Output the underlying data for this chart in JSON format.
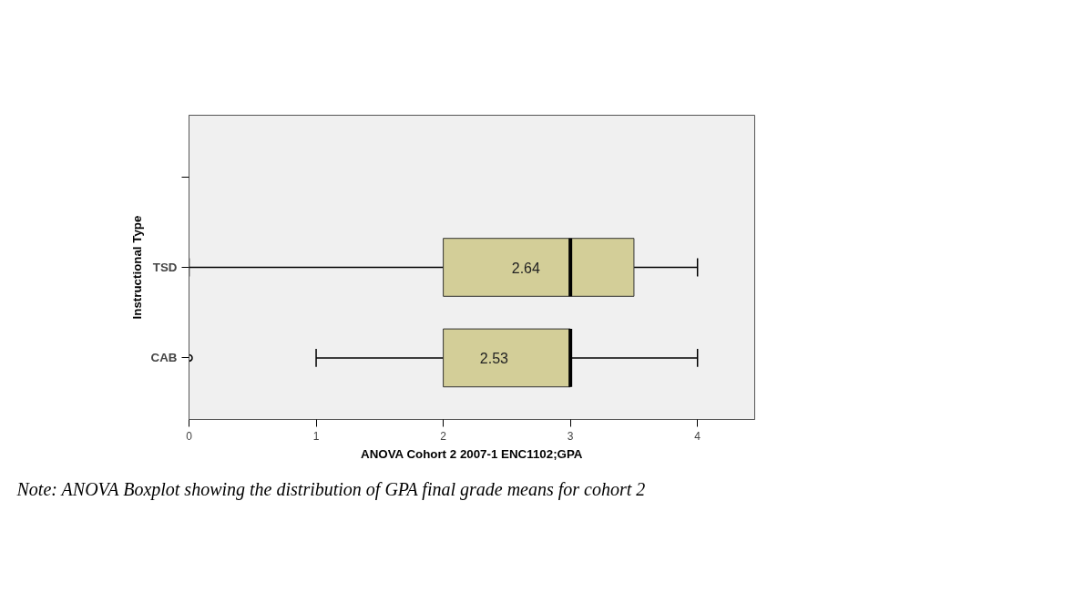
{
  "chart_data": {
    "type": "box",
    "orientation": "horizontal",
    "xlabel": "ANOVA Cohort 2 2007-1 ENC1102;GPA",
    "ylabel": "Instructional Type",
    "categories": [
      null,
      "TSD",
      "CAB"
    ],
    "series": [
      {
        "color": "#d3ce98",
        "boxes": [
          null,
          {
            "low": 0,
            "q1": 2,
            "median": 3,
            "q3": 3.5,
            "high": 4
          },
          {
            "low": 1,
            "q1": 2,
            "median": 3,
            "q3": 3,
            "high": 4,
            "outliers": [
              0
            ]
          }
        ]
      }
    ],
    "xlim": [
      0,
      4.45
    ],
    "xticks": [
      0,
      1,
      2,
      3,
      4
    ],
    "grid": false,
    "annotations": [
      "2.64",
      "2.53",
      "Note: ANOVA Boxplot showing the  distribution  of GPA final grade means  for cohort 2"
    ]
  }
}
